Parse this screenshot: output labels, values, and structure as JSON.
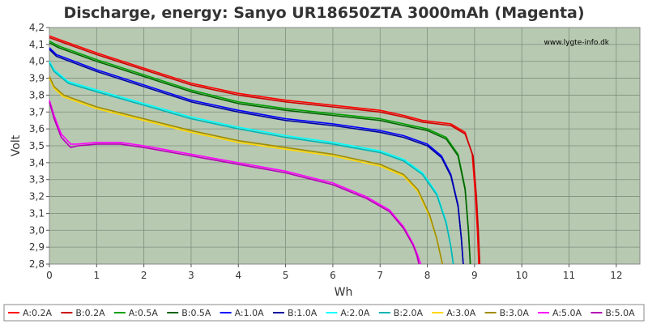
{
  "chart_data": {
    "type": "line",
    "title": "Discharge, energy: Sanyo UR18650ZTA 3000mAh (Magenta)",
    "xlabel": "Wh",
    "ylabel": "Volt",
    "watermark": "www.lygte-info.dk",
    "xlim": [
      0,
      12.5
    ],
    "ylim": [
      2.8,
      4.2
    ],
    "x_ticks": [
      "0",
      "1",
      "2",
      "3",
      "4",
      "5",
      "6",
      "7",
      "8",
      "9",
      "10",
      "11",
      "12"
    ],
    "y_ticks": [
      "2,8",
      "2,9",
      "3,0",
      "3,1",
      "3,2",
      "3,3",
      "3,4",
      "3,5",
      "3,6",
      "3,7",
      "3,8",
      "3,9",
      "4,0",
      "4,1",
      "4,2"
    ],
    "grid": true,
    "legend_position": "bottom",
    "plot_background": "#b7c9b1",
    "series": [
      {
        "name": "A:0.2A",
        "color": "#ff0000",
        "x": [
          0,
          0.3,
          1,
          2,
          3,
          4,
          5,
          6,
          7,
          7.5,
          7.9,
          8.5,
          8.8,
          8.95,
          9.02,
          9.06,
          9.09
        ],
        "y": [
          4.15,
          4.12,
          4.05,
          3.96,
          3.87,
          3.81,
          3.77,
          3.74,
          3.71,
          3.68,
          3.65,
          3.63,
          3.58,
          3.45,
          3.2,
          3.0,
          2.8
        ]
      },
      {
        "name": "B:0.2A",
        "color": "#cc0000",
        "x": [
          0,
          0.3,
          1,
          2,
          3,
          4,
          5,
          6,
          7,
          7.5,
          7.9,
          8.5,
          8.8,
          8.97,
          9.04,
          9.08,
          9.11
        ],
        "y": [
          4.14,
          4.11,
          4.04,
          3.95,
          3.86,
          3.8,
          3.76,
          3.73,
          3.7,
          3.67,
          3.64,
          3.62,
          3.57,
          3.44,
          3.2,
          3.0,
          2.8
        ]
      },
      {
        "name": "A:0.5A",
        "color": "#00a000",
        "x": [
          0,
          0.2,
          1,
          2,
          3,
          4,
          5,
          6,
          7,
          7.5,
          8,
          8.4,
          8.65,
          8.8,
          8.87,
          8.91
        ],
        "y": [
          4.12,
          4.09,
          4.01,
          3.92,
          3.83,
          3.76,
          3.72,
          3.69,
          3.66,
          3.63,
          3.6,
          3.55,
          3.45,
          3.25,
          3.0,
          2.8
        ]
      },
      {
        "name": "B:0.5A",
        "color": "#006400",
        "x": [
          0,
          0.2,
          1,
          2,
          3,
          4,
          5,
          6,
          7,
          7.5,
          8,
          8.4,
          8.65,
          8.8,
          8.87,
          8.91
        ],
        "y": [
          4.11,
          4.08,
          4.0,
          3.91,
          3.82,
          3.75,
          3.71,
          3.68,
          3.65,
          3.62,
          3.59,
          3.54,
          3.44,
          3.24,
          3.0,
          2.8
        ]
      },
      {
        "name": "A:1.0A",
        "color": "#0000ff",
        "x": [
          0,
          0.15,
          1,
          2,
          3,
          4,
          5,
          6,
          7,
          7.5,
          8,
          8.3,
          8.5,
          8.65,
          8.72,
          8.76
        ],
        "y": [
          4.08,
          4.04,
          3.95,
          3.86,
          3.77,
          3.71,
          3.66,
          3.63,
          3.59,
          3.56,
          3.51,
          3.44,
          3.33,
          3.15,
          2.95,
          2.8
        ]
      },
      {
        "name": "B:1.0A",
        "color": "#0000a0",
        "x": [
          0,
          0.15,
          1,
          2,
          3,
          4,
          5,
          6,
          7,
          7.5,
          8,
          8.3,
          8.5,
          8.65,
          8.72,
          8.76
        ],
        "y": [
          4.07,
          4.03,
          3.94,
          3.85,
          3.76,
          3.7,
          3.65,
          3.62,
          3.58,
          3.55,
          3.5,
          3.43,
          3.32,
          3.14,
          2.95,
          2.8
        ]
      },
      {
        "name": "A:2.0A",
        "color": "#00ffff",
        "x": [
          0,
          0.1,
          0.4,
          1,
          2,
          3,
          4,
          5,
          6,
          7,
          7.5,
          7.9,
          8.2,
          8.4,
          8.5,
          8.55
        ],
        "y": [
          4.0,
          3.95,
          3.88,
          3.83,
          3.75,
          3.67,
          3.61,
          3.56,
          3.52,
          3.47,
          3.42,
          3.34,
          3.22,
          3.05,
          2.9,
          2.8
        ]
      },
      {
        "name": "B:2.0A",
        "color": "#00b4b4",
        "x": [
          0,
          0.1,
          0.4,
          1,
          2,
          3,
          4,
          5,
          6,
          7,
          7.5,
          7.9,
          8.2,
          8.4,
          8.5,
          8.55
        ],
        "y": [
          3.99,
          3.94,
          3.87,
          3.82,
          3.74,
          3.66,
          3.6,
          3.55,
          3.51,
          3.46,
          3.41,
          3.33,
          3.21,
          3.04,
          2.9,
          2.8
        ]
      },
      {
        "name": "A:3.0A",
        "color": "#ffd700",
        "x": [
          0,
          0.1,
          0.3,
          0.6,
          1,
          2,
          3,
          4,
          5,
          6,
          7,
          7.5,
          7.8,
          8.05,
          8.2,
          8.28,
          8.32
        ],
        "y": [
          3.9,
          3.84,
          3.79,
          3.76,
          3.72,
          3.65,
          3.58,
          3.52,
          3.48,
          3.44,
          3.38,
          3.32,
          3.23,
          3.08,
          2.95,
          2.85,
          2.8
        ]
      },
      {
        "name": "B:3.0A",
        "color": "#a08c00",
        "x": [
          0,
          0.1,
          0.3,
          0.6,
          1,
          2,
          3,
          4,
          5,
          6,
          7,
          7.5,
          7.8,
          8.05,
          8.2,
          8.28,
          8.32
        ],
        "y": [
          3.91,
          3.85,
          3.8,
          3.77,
          3.73,
          3.66,
          3.59,
          3.53,
          3.49,
          3.45,
          3.39,
          3.33,
          3.24,
          3.09,
          2.95,
          2.85,
          2.8
        ]
      },
      {
        "name": "A:5.0A",
        "color": "#ff00ff",
        "x": [
          0,
          0.1,
          0.25,
          0.45,
          0.6,
          1,
          1.5,
          2,
          3,
          4,
          5,
          6,
          6.7,
          7.2,
          7.5,
          7.7,
          7.8,
          7.86
        ],
        "y": [
          3.77,
          3.68,
          3.57,
          3.51,
          3.51,
          3.52,
          3.52,
          3.5,
          3.45,
          3.4,
          3.35,
          3.28,
          3.2,
          3.12,
          3.02,
          2.92,
          2.85,
          2.8
        ]
      },
      {
        "name": "B:5.0A",
        "color": "#b400b4",
        "x": [
          0,
          0.1,
          0.25,
          0.45,
          0.6,
          1,
          1.5,
          2,
          3,
          4,
          5,
          6,
          6.7,
          7.2,
          7.5,
          7.7,
          7.78,
          7.82
        ],
        "y": [
          3.76,
          3.66,
          3.55,
          3.49,
          3.5,
          3.51,
          3.51,
          3.49,
          3.44,
          3.39,
          3.34,
          3.27,
          3.19,
          3.11,
          3.01,
          2.91,
          2.85,
          2.8
        ]
      }
    ]
  }
}
